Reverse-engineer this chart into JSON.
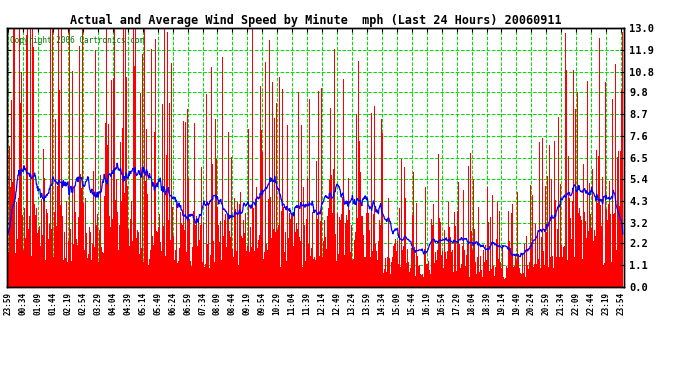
{
  "title": "Actual and Average Wind Speed by Minute  mph (Last 24 Hours) 20060911",
  "copyright": "Copyright 2006 Cartronics.com",
  "ylabel_right": [
    "13.0",
    "11.9",
    "10.8",
    "9.8",
    "8.7",
    "7.6",
    "6.5",
    "5.4",
    "4.3",
    "3.2",
    "2.2",
    "1.1",
    "0.0"
  ],
  "ymax": 13.0,
  "ymin": 0.0,
  "yticks": [
    0.0,
    1.1,
    2.2,
    3.2,
    4.3,
    5.4,
    6.5,
    7.6,
    8.7,
    9.8,
    10.8,
    11.9,
    13.0
  ],
  "bg_color": "#ffffff",
  "plot_bg_color": "#ffffff",
  "bar_color": "#ff0000",
  "line_color": "#0000ff",
  "grid_color": "#00dd00",
  "num_minutes": 1440,
  "x_tick_interval": 35,
  "seed": 12345,
  "avg_base": 2.8,
  "avg_variation": 1.2,
  "spike_prob": 0.35,
  "spike_max": 13.0
}
